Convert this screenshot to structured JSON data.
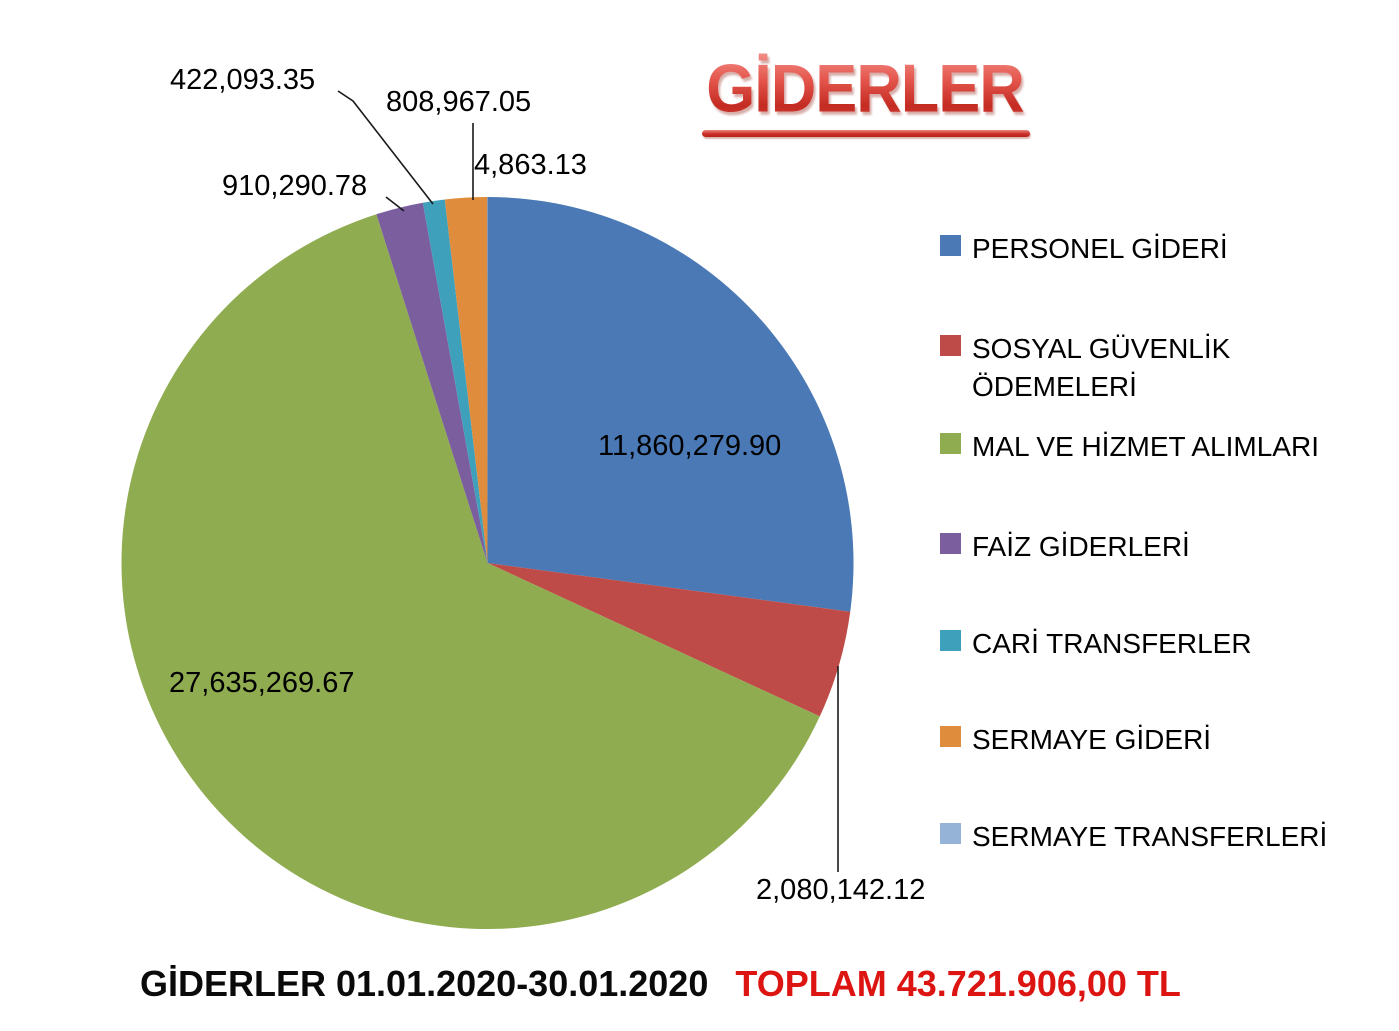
{
  "title": {
    "text": "GİDERLER"
  },
  "footer": {
    "period": "GİDERLER 01.01.2020-30.01.2020",
    "total": "TOPLAM 43.721.906,00 TL"
  },
  "chart_data": {
    "type": "pie",
    "title": "GİDERLER",
    "legend_position": "right",
    "start_angle_deg": 0,
    "direction": "clockwise",
    "total_value": 43721906.0,
    "total_display": "43.721.906,00 TL",
    "slices": [
      {
        "id": "personel-gideri",
        "label": "PERSONEL GİDERİ",
        "value": 11860279.9,
        "display": "11,860,279.90",
        "color": "#4A79B5"
      },
      {
        "id": "sosyal-guvenlik",
        "label": "SOSYAL GÜVENLİK ÖDEMELERİ",
        "value": 2080142.12,
        "display": "2,080,142.12",
        "color": "#BE4B48"
      },
      {
        "id": "mal-ve-hizmet",
        "label": "MAL VE HİZMET ALIMLARI",
        "value": 27635269.67,
        "display": "27,635,269.67",
        "color": "#90AC51"
      },
      {
        "id": "faiz-giderleri",
        "label": "FAİZ GİDERLERİ",
        "value": 910290.78,
        "display": "910,290.78",
        "color": "#7A5E9E"
      },
      {
        "id": "cari-transferler",
        "label": "CARİ TRANSFERLER",
        "value": 422093.35,
        "display": "422,093.35",
        "color": "#3FA0BC"
      },
      {
        "id": "sermaye-gideri",
        "label": "SERMAYE GİDERİ",
        "value": 808967.05,
        "display": "808,967.05",
        "color": "#DF8C3D"
      },
      {
        "id": "sermaye-transferleri",
        "label": "SERMAYE TRANSFERLERİ",
        "value": 4863.13,
        "display": "4,863.13",
        "color": "#95B3D7"
      }
    ]
  }
}
